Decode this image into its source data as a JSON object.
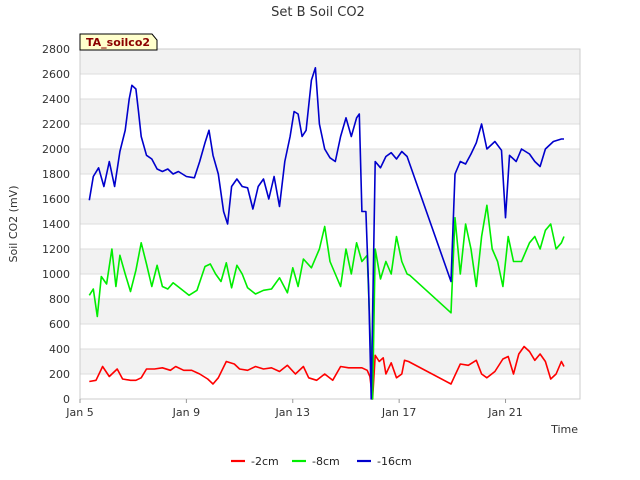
{
  "chart_data": {
    "type": "line",
    "title": "Set B Soil CO2",
    "xlabel": "Time",
    "ylabel": "Soil CO2 (mV)",
    "ylim": [
      0,
      2800
    ],
    "yticks": [
      0,
      200,
      400,
      600,
      800,
      1000,
      1200,
      1400,
      1600,
      1800,
      2000,
      2200,
      2400,
      2600,
      2800
    ],
    "xlim": [
      5,
      23.8
    ],
    "xticks": [
      {
        "value": 5,
        "label": "Jan 5"
      },
      {
        "value": 9,
        "label": "Jan 9"
      },
      {
        "value": 13,
        "label": "Jan 13"
      },
      {
        "value": 17,
        "label": "Jan 17"
      },
      {
        "value": 21,
        "label": "Jan 21"
      }
    ],
    "badge": "TA_soilco2",
    "legend_position": "bottom",
    "series": [
      {
        "name": "-2cm",
        "color": "#ff0000",
        "points": [
          [
            5.35,
            140
          ],
          [
            5.6,
            150
          ],
          [
            5.85,
            260
          ],
          [
            6.1,
            180
          ],
          [
            6.4,
            240
          ],
          [
            6.6,
            160
          ],
          [
            6.9,
            150
          ],
          [
            7.1,
            150
          ],
          [
            7.3,
            170
          ],
          [
            7.5,
            240
          ],
          [
            7.8,
            240
          ],
          [
            8.1,
            250
          ],
          [
            8.4,
            230
          ],
          [
            8.6,
            260
          ],
          [
            8.9,
            230
          ],
          [
            9.2,
            230
          ],
          [
            9.5,
            200
          ],
          [
            9.8,
            160
          ],
          [
            10,
            120
          ],
          [
            10.2,
            170
          ],
          [
            10.5,
            300
          ],
          [
            10.8,
            280
          ],
          [
            11,
            240
          ],
          [
            11.3,
            230
          ],
          [
            11.6,
            260
          ],
          [
            11.9,
            240
          ],
          [
            12.2,
            250
          ],
          [
            12.5,
            220
          ],
          [
            12.8,
            270
          ],
          [
            13.1,
            200
          ],
          [
            13.4,
            260
          ],
          [
            13.6,
            170
          ],
          [
            13.9,
            150
          ],
          [
            14.2,
            200
          ],
          [
            14.5,
            150
          ],
          [
            14.8,
            260
          ],
          [
            15.1,
            250
          ],
          [
            15.4,
            250
          ],
          [
            15.6,
            250
          ],
          [
            15.8,
            230
          ],
          [
            15.9,
            180
          ],
          [
            16.0,
            0
          ],
          [
            16.1,
            350
          ],
          [
            16.25,
            300
          ],
          [
            16.4,
            330
          ],
          [
            16.5,
            200
          ],
          [
            16.7,
            290
          ],
          [
            16.9,
            170
          ],
          [
            17.1,
            200
          ],
          [
            17.2,
            310
          ],
          [
            17.35,
            300
          ],
          [
            18.95,
            120
          ],
          [
            19.1,
            190
          ],
          [
            19.3,
            280
          ],
          [
            19.6,
            270
          ],
          [
            19.9,
            310
          ],
          [
            20.1,
            200
          ],
          [
            20.3,
            170
          ],
          [
            20.6,
            220
          ],
          [
            20.9,
            320
          ],
          [
            21.1,
            340
          ],
          [
            21.3,
            200
          ],
          [
            21.5,
            360
          ],
          [
            21.7,
            420
          ],
          [
            21.9,
            380
          ],
          [
            22.1,
            310
          ],
          [
            22.3,
            360
          ],
          [
            22.5,
            300
          ],
          [
            22.7,
            160
          ],
          [
            22.9,
            200
          ],
          [
            23.1,
            300
          ],
          [
            23.2,
            260
          ]
        ]
      },
      {
        "name": "-8cm",
        "color": "#00ee00",
        "points": [
          [
            5.35,
            830
          ],
          [
            5.5,
            880
          ],
          [
            5.65,
            660
          ],
          [
            5.8,
            980
          ],
          [
            6.0,
            920
          ],
          [
            6.2,
            1200
          ],
          [
            6.35,
            900
          ],
          [
            6.5,
            1150
          ],
          [
            6.7,
            1000
          ],
          [
            6.9,
            860
          ],
          [
            7.1,
            1030
          ],
          [
            7.3,
            1250
          ],
          [
            7.5,
            1080
          ],
          [
            7.7,
            900
          ],
          [
            7.9,
            1070
          ],
          [
            8.1,
            900
          ],
          [
            8.3,
            880
          ],
          [
            8.5,
            930
          ],
          [
            8.8,
            880
          ],
          [
            9.1,
            830
          ],
          [
            9.4,
            870
          ],
          [
            9.7,
            1060
          ],
          [
            9.9,
            1080
          ],
          [
            10.1,
            1000
          ],
          [
            10.3,
            940
          ],
          [
            10.5,
            1090
          ],
          [
            10.7,
            890
          ],
          [
            10.9,
            1070
          ],
          [
            11.1,
            1000
          ],
          [
            11.3,
            890
          ],
          [
            11.6,
            840
          ],
          [
            11.9,
            870
          ],
          [
            12.2,
            880
          ],
          [
            12.5,
            970
          ],
          [
            12.8,
            850
          ],
          [
            13.0,
            1050
          ],
          [
            13.2,
            900
          ],
          [
            13.4,
            1120
          ],
          [
            13.7,
            1050
          ],
          [
            14.0,
            1200
          ],
          [
            14.2,
            1380
          ],
          [
            14.4,
            1100
          ],
          [
            14.6,
            1000
          ],
          [
            14.8,
            900
          ],
          [
            15.0,
            1200
          ],
          [
            15.2,
            1000
          ],
          [
            15.4,
            1250
          ],
          [
            15.6,
            1100
          ],
          [
            15.8,
            1150
          ],
          [
            16.0,
            0
          ],
          [
            16.1,
            1200
          ],
          [
            16.3,
            960
          ],
          [
            16.5,
            1100
          ],
          [
            16.7,
            1000
          ],
          [
            16.9,
            1300
          ],
          [
            17.1,
            1100
          ],
          [
            17.3,
            1000
          ],
          [
            17.4,
            990
          ],
          [
            18.95,
            690
          ],
          [
            19.1,
            1450
          ],
          [
            19.3,
            1000
          ],
          [
            19.5,
            1400
          ],
          [
            19.7,
            1200
          ],
          [
            19.9,
            900
          ],
          [
            20.1,
            1300
          ],
          [
            20.3,
            1550
          ],
          [
            20.5,
            1200
          ],
          [
            20.7,
            1100
          ],
          [
            20.9,
            900
          ],
          [
            21.1,
            1300
          ],
          [
            21.3,
            1100
          ],
          [
            21.6,
            1100
          ],
          [
            21.9,
            1250
          ],
          [
            22.1,
            1300
          ],
          [
            22.3,
            1200
          ],
          [
            22.5,
            1350
          ],
          [
            22.7,
            1400
          ],
          [
            22.9,
            1200
          ],
          [
            23.1,
            1250
          ],
          [
            23.2,
            1300
          ]
        ]
      },
      {
        "name": "-16cm",
        "color": "#0000cc",
        "points": [
          [
            5.35,
            1590
          ],
          [
            5.5,
            1780
          ],
          [
            5.7,
            1850
          ],
          [
            5.9,
            1700
          ],
          [
            6.1,
            1900
          ],
          [
            6.3,
            1700
          ],
          [
            6.5,
            1980
          ],
          [
            6.7,
            2150
          ],
          [
            6.85,
            2400
          ],
          [
            6.95,
            2510
          ],
          [
            7.1,
            2480
          ],
          [
            7.2,
            2300
          ],
          [
            7.3,
            2100
          ],
          [
            7.5,
            1950
          ],
          [
            7.7,
            1920
          ],
          [
            7.9,
            1840
          ],
          [
            8.1,
            1820
          ],
          [
            8.3,
            1840
          ],
          [
            8.5,
            1800
          ],
          [
            8.7,
            1820
          ],
          [
            9.0,
            1780
          ],
          [
            9.3,
            1770
          ],
          [
            9.5,
            1900
          ],
          [
            9.7,
            2050
          ],
          [
            9.85,
            2150
          ],
          [
            10.0,
            1950
          ],
          [
            10.2,
            1800
          ],
          [
            10.4,
            1500
          ],
          [
            10.55,
            1400
          ],
          [
            10.7,
            1700
          ],
          [
            10.9,
            1760
          ],
          [
            11.1,
            1700
          ],
          [
            11.3,
            1690
          ],
          [
            11.5,
            1520
          ],
          [
            11.7,
            1700
          ],
          [
            11.9,
            1760
          ],
          [
            12.1,
            1600
          ],
          [
            12.3,
            1780
          ],
          [
            12.5,
            1540
          ],
          [
            12.7,
            1900
          ],
          [
            12.9,
            2100
          ],
          [
            13.05,
            2300
          ],
          [
            13.2,
            2280
          ],
          [
            13.35,
            2100
          ],
          [
            13.5,
            2150
          ],
          [
            13.7,
            2550
          ],
          [
            13.85,
            2650
          ],
          [
            14.0,
            2200
          ],
          [
            14.2,
            2000
          ],
          [
            14.4,
            1930
          ],
          [
            14.6,
            1900
          ],
          [
            14.8,
            2100
          ],
          [
            15.0,
            2250
          ],
          [
            15.2,
            2100
          ],
          [
            15.4,
            2250
          ],
          [
            15.5,
            2280
          ],
          [
            15.6,
            1500
          ],
          [
            15.75,
            1500
          ],
          [
            15.85,
            900
          ],
          [
            15.95,
            0
          ],
          [
            16.1,
            1900
          ],
          [
            16.3,
            1850
          ],
          [
            16.5,
            1940
          ],
          [
            16.7,
            1970
          ],
          [
            16.9,
            1920
          ],
          [
            17.1,
            1980
          ],
          [
            17.3,
            1940
          ],
          [
            18.95,
            940
          ],
          [
            19.1,
            1800
          ],
          [
            19.3,
            1900
          ],
          [
            19.5,
            1880
          ],
          [
            19.7,
            1960
          ],
          [
            19.9,
            2050
          ],
          [
            20.1,
            2200
          ],
          [
            20.3,
            2000
          ],
          [
            20.6,
            2060
          ],
          [
            20.85,
            1990
          ],
          [
            21.0,
            1450
          ],
          [
            21.15,
            1950
          ],
          [
            21.4,
            1900
          ],
          [
            21.6,
            2000
          ],
          [
            21.9,
            1960
          ],
          [
            22.1,
            1900
          ],
          [
            22.3,
            1860
          ],
          [
            22.5,
            2000
          ],
          [
            22.8,
            2060
          ],
          [
            23.1,
            2080
          ],
          [
            23.2,
            2080
          ]
        ]
      }
    ]
  }
}
